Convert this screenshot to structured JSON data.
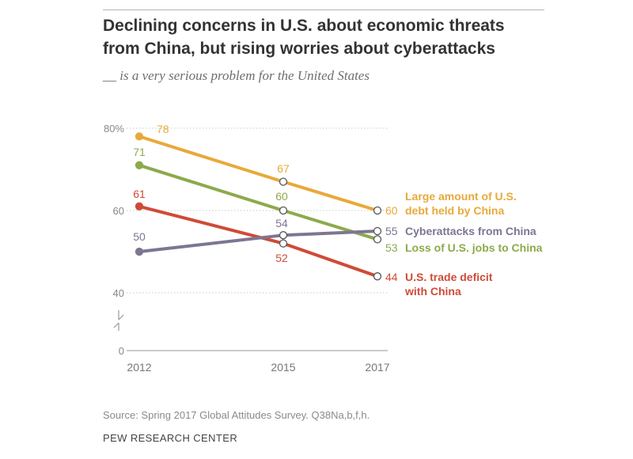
{
  "chart_data": {
    "type": "line",
    "title_lines": [
      "Declining concerns in U.S. about economic threats",
      "from China, but rising worries about cyberattacks"
    ],
    "subtitle": "__ is a very serious problem for the United States",
    "x": [
      "2012",
      "2015",
      "2017"
    ],
    "y_ticks": [
      "80%",
      "60",
      "40",
      "0"
    ],
    "ylim": [
      0,
      80
    ],
    "axis_break": true,
    "grid": true,
    "series": [
      {
        "name": "Large amount of U.S. debt held by China",
        "name_lines": [
          "Large amount of U.S.",
          "debt held by China"
        ],
        "values": [
          78,
          67,
          60
        ],
        "color": "#E8A93B"
      },
      {
        "name": "Loss of U.S. jobs to China",
        "name_lines": [
          "Loss of U.S. jobs to China"
        ],
        "values": [
          71,
          60,
          53
        ],
        "color": "#8DAA4B"
      },
      {
        "name": "U.S. trade deficit with China",
        "name_lines": [
          "U.S. trade deficit",
          "with China"
        ],
        "values": [
          61,
          52,
          44
        ],
        "color": "#CF4B37"
      },
      {
        "name": "Cyberattacks from China",
        "name_lines": [
          "Cyberattacks from China"
        ],
        "values": [
          50,
          54,
          55
        ],
        "color": "#7E7593"
      }
    ]
  },
  "footer": {
    "source": "Source: Spring 2017 Global Attitudes Survey. Q38Na,b,f,h.",
    "organization": "PEW RESEARCH CENTER"
  }
}
